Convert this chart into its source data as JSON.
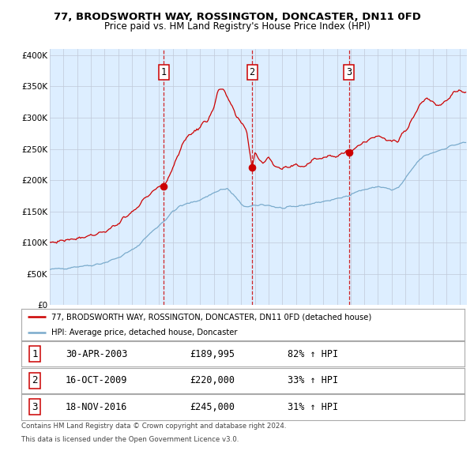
{
  "title": "77, BRODSWORTH WAY, ROSSINGTON, DONCASTER, DN11 0FD",
  "subtitle": "Price paid vs. HM Land Registry's House Price Index (HPI)",
  "legend_line1": "77, BRODSWORTH WAY, ROSSINGTON, DONCASTER, DN11 0FD (detached house)",
  "legend_line2": "HPI: Average price, detached house, Doncaster",
  "footer1": "Contains HM Land Registry data © Crown copyright and database right 2024.",
  "footer2": "This data is licensed under the Open Government Licence v3.0.",
  "purchases": [
    {
      "num": 1,
      "date": "30-APR-2003",
      "price": 189995,
      "pct": "82%",
      "dir": "↑"
    },
    {
      "num": 2,
      "date": "16-OCT-2009",
      "price": 220000,
      "pct": "33%",
      "dir": "↑"
    },
    {
      "num": 3,
      "date": "18-NOV-2016",
      "price": 245000,
      "pct": "31%",
      "dir": "↑"
    }
  ],
  "purchase_dates_decimal": [
    2003.33,
    2009.79,
    2016.88
  ],
  "red_line_color": "#cc0000",
  "blue_line_color": "#7aabcc",
  "background_color": "#ddeeff",
  "grid_color": "#c0c8d8",
  "dashed_line_color": "#cc0000",
  "ylim": [
    0,
    410000
  ],
  "xlim_start": 1995.0,
  "xlim_end": 2025.5,
  "yticks": [
    0,
    50000,
    100000,
    150000,
    200000,
    250000,
    300000,
    350000,
    400000
  ],
  "ytick_labels": [
    "£0",
    "£50K",
    "£100K",
    "£150K",
    "£200K",
    "£250K",
    "£300K",
    "£350K",
    "£400K"
  ],
  "xticks": [
    1995,
    1996,
    1997,
    1998,
    1999,
    2000,
    2001,
    2002,
    2003,
    2004,
    2005,
    2006,
    2007,
    2008,
    2009,
    2010,
    2011,
    2012,
    2013,
    2014,
    2015,
    2016,
    2017,
    2018,
    2019,
    2020,
    2021,
    2022,
    2023,
    2024,
    2025
  ]
}
